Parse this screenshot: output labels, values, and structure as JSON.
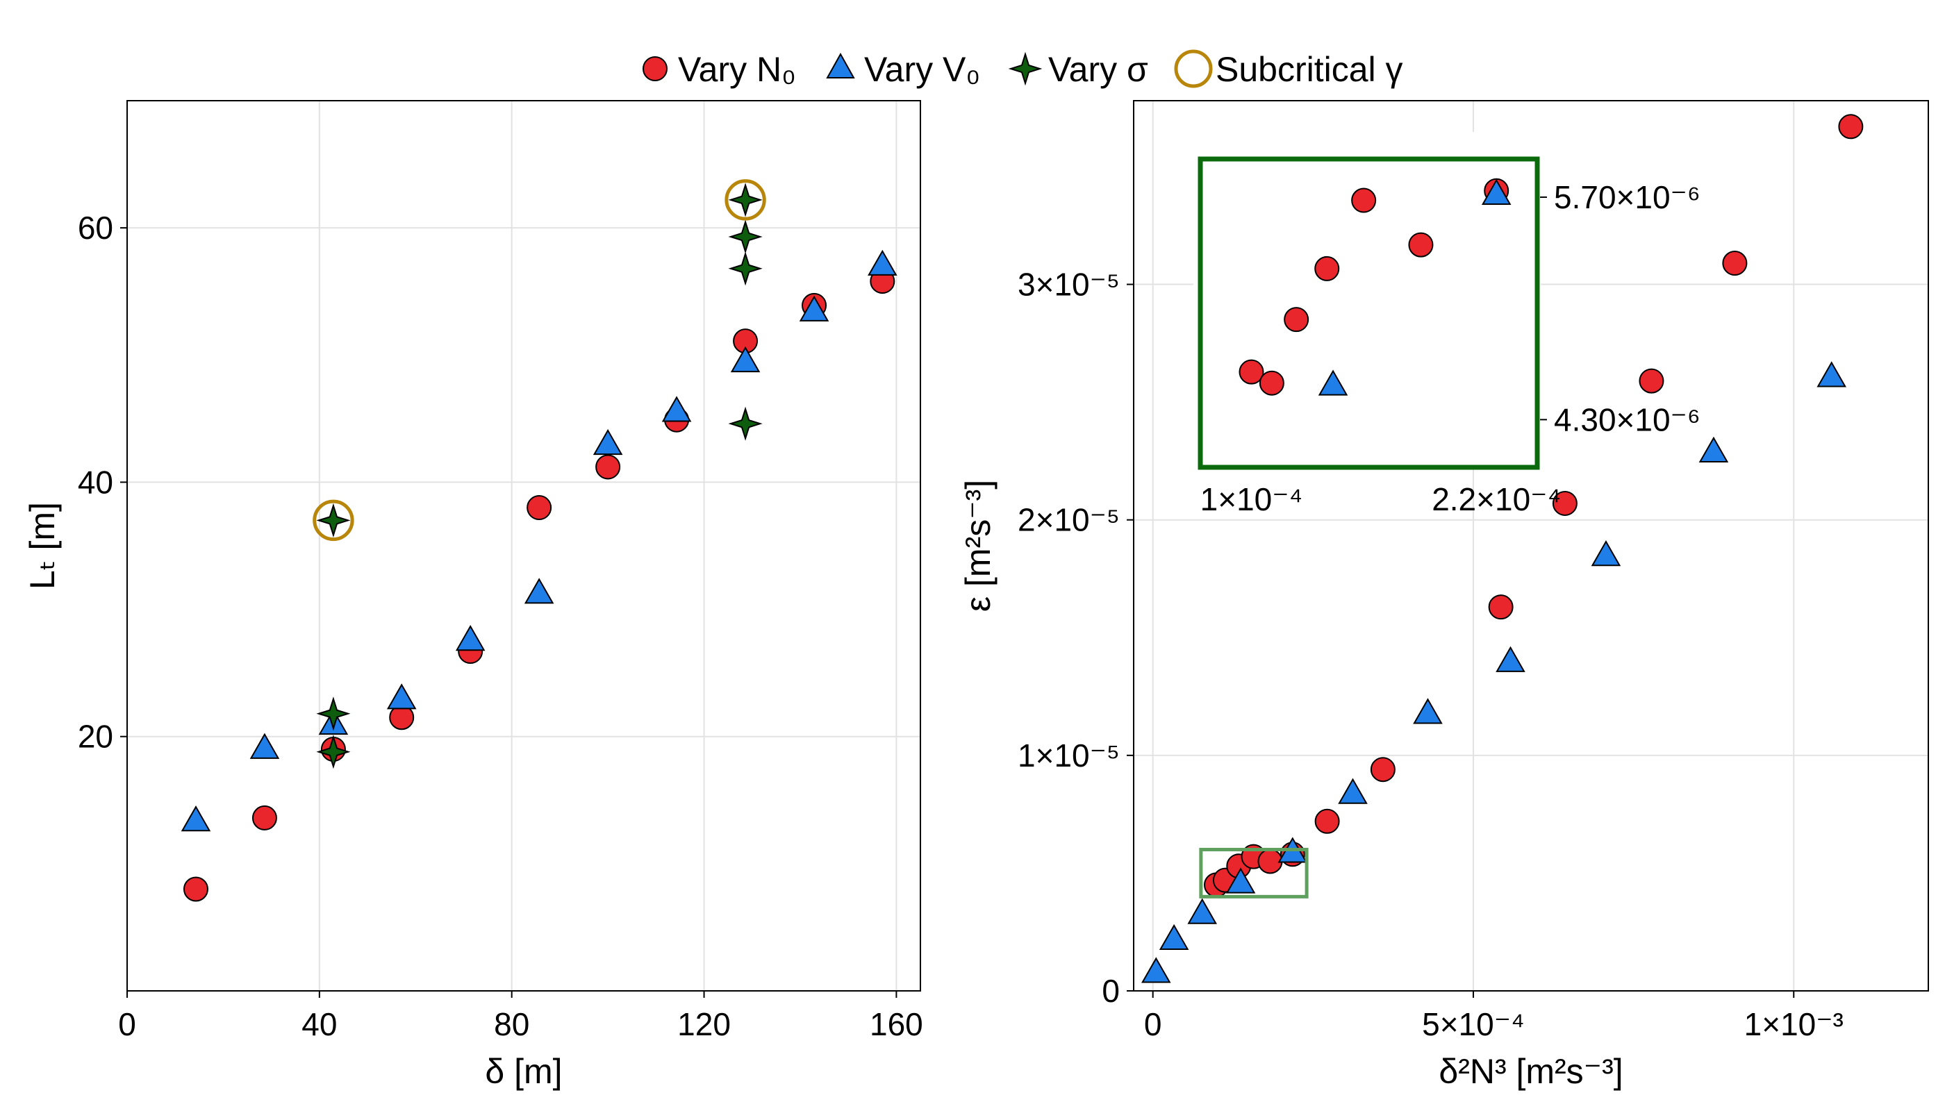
{
  "legend": {
    "vary_n0": "Vary N₀",
    "vary_v0": "Vary V₀",
    "vary_sigma": "Vary σ",
    "subcritical": "Subcritical γ"
  },
  "colors": {
    "red": "#e8262b",
    "blue": "#1f7ee8",
    "green": "#0e5c0e",
    "gold": "#b8860b",
    "inset_box": "#0b6a0b",
    "zoom_box": "#5fa05f"
  },
  "chart_data": [
    {
      "type": "scatter",
      "xlabel": "δ [m]",
      "ylabel": "Lₜ [m]",
      "xlim": [
        0,
        165
      ],
      "ylim": [
        0,
        70
      ],
      "xticks": [
        0,
        40,
        80,
        120,
        160
      ],
      "xtick_labels": [
        "0",
        "40",
        "80",
        "120",
        "160"
      ],
      "yticks": [
        20,
        40,
        60
      ],
      "ytick_labels": [
        "20",
        "40",
        "60"
      ],
      "grid": true,
      "series": [
        {
          "name": "Vary N₀",
          "marker": "circle",
          "color": "#e8262b",
          "points": [
            [
              14.3,
              8.0
            ],
            [
              28.6,
              13.6
            ],
            [
              42.9,
              19.0
            ],
            [
              57.1,
              21.5
            ],
            [
              71.4,
              26.7
            ],
            [
              85.7,
              38.0
            ],
            [
              100.0,
              41.2
            ],
            [
              114.3,
              44.9
            ],
            [
              128.6,
              51.1
            ],
            [
              142.9,
              53.9
            ],
            [
              157.1,
              55.8
            ]
          ]
        },
        {
          "name": "Vary V₀",
          "marker": "triangle",
          "color": "#1f7ee8",
          "points": [
            [
              14.3,
              13.4
            ],
            [
              28.6,
              19.1
            ],
            [
              42.9,
              21.0
            ],
            [
              57.1,
              23.0
            ],
            [
              71.4,
              27.6
            ],
            [
              85.7,
              31.3
            ],
            [
              100.0,
              43.0
            ],
            [
              114.3,
              45.6
            ],
            [
              128.6,
              49.5
            ],
            [
              142.9,
              53.5
            ],
            [
              157.1,
              57.1
            ]
          ]
        },
        {
          "name": "Vary σ",
          "marker": "star4",
          "color": "#0e5c0e",
          "points": [
            [
              42.9,
              18.8
            ],
            [
              42.9,
              21.8
            ],
            [
              42.9,
              37.0
            ],
            [
              128.6,
              44.6
            ],
            [
              128.6,
              56.8
            ],
            [
              128.6,
              59.3
            ],
            [
              128.6,
              62.2
            ]
          ]
        },
        {
          "name": "Subcritical γ",
          "marker": "ring",
          "color": "#b8860b",
          "points": [
            [
              42.9,
              37.0
            ],
            [
              128.6,
              62.2
            ]
          ]
        }
      ]
    },
    {
      "type": "scatter",
      "xlabel": "δ²N³ [m²s⁻³]",
      "ylabel": "ε [m²s⁻³]",
      "xlim": [
        -3e-05,
        0.00121
      ],
      "ylim": [
        0,
        3.78e-05
      ],
      "xticks": [
        0,
        0.0005,
        0.001
      ],
      "xtick_labels": [
        "0",
        "5×10⁻⁴",
        "1×10⁻³"
      ],
      "yticks": [
        0,
        1e-05,
        2e-05,
        3e-05
      ],
      "ytick_labels": [
        "0",
        "1×10⁻⁵",
        "2×10⁻⁵",
        "3×10⁻⁵"
      ],
      "grid": true,
      "series": [
        {
          "name": "Vary N₀",
          "marker": "circle",
          "color": "#e8262b",
          "points": [
            [
              9.9e-05,
              4.5e-06
            ],
            [
              0.000113,
              4.7e-06
            ],
            [
              0.000134,
              5.3e-06
            ],
            [
              0.000157,
              5.7e-06
            ],
            [
              0.000183,
              5.5e-06
            ],
            [
              0.000218,
              5.8e-06
            ],
            [
              0.000272,
              7.2e-06
            ],
            [
              0.000359,
              9.4e-06
            ],
            [
              0.000543,
              1.63e-05
            ],
            [
              0.000643,
              2.07e-05
            ],
            [
              0.000778,
              2.59e-05
            ],
            [
              0.000908,
              3.09e-05
            ],
            [
              0.001089,
              3.67e-05
            ]
          ]
        },
        {
          "name": "Vary V₀",
          "marker": "triangle",
          "color": "#1f7ee8",
          "points": [
            [
              5e-06,
              8e-07
            ],
            [
              3.3e-05,
              2.2e-06
            ],
            [
              7.7e-05,
              3.3e-06
            ],
            [
              0.000137,
              4.6e-06
            ],
            [
              0.000218,
              5.9e-06
            ],
            [
              0.000312,
              8.4e-06
            ],
            [
              0.000429,
              1.18e-05
            ],
            [
              0.000558,
              1.4e-05
            ],
            [
              0.000707,
              1.85e-05
            ],
            [
              0.000875,
              2.29e-05
            ],
            [
              0.001059,
              2.61e-05
            ]
          ]
        }
      ],
      "inset": {
        "xlim": [
          7.5e-05,
          0.00024
        ],
        "ylim": [
          4e-06,
          5.94e-06
        ],
        "xticks": [
          0.0001,
          0.00022
        ],
        "xtick_labels": [
          "1×10⁻⁴",
          "2.2×10⁻⁴"
        ],
        "yticks": [
          4.3e-06,
          5.7e-06
        ],
        "ytick_labels": [
          "4.30×10⁻⁶",
          "5.70×10⁻⁶"
        ],
        "zoom_region": {
          "x": [
            7.5e-05,
            0.00024
          ],
          "y": [
            4e-06,
            6e-06
          ]
        },
        "series": [
          {
            "name": "Vary N₀",
            "marker": "circle",
            "color": "#e8262b",
            "points": [
              [
                0.0001,
                4.6e-06
              ],
              [
                0.00011,
                4.53e-06
              ],
              [
                0.000122,
                4.93e-06
              ],
              [
                0.000137,
                5.25e-06
              ],
              [
                0.000155,
                5.68e-06
              ],
              [
                0.000183,
                5.4e-06
              ],
              [
                0.00022,
                5.74e-06
              ]
            ]
          },
          {
            "name": "Vary V₀",
            "marker": "triangle",
            "color": "#1f7ee8",
            "points": [
              [
                0.00014,
                4.52e-06
              ],
              [
                0.00022,
                5.72e-06
              ]
            ]
          }
        ]
      }
    }
  ]
}
